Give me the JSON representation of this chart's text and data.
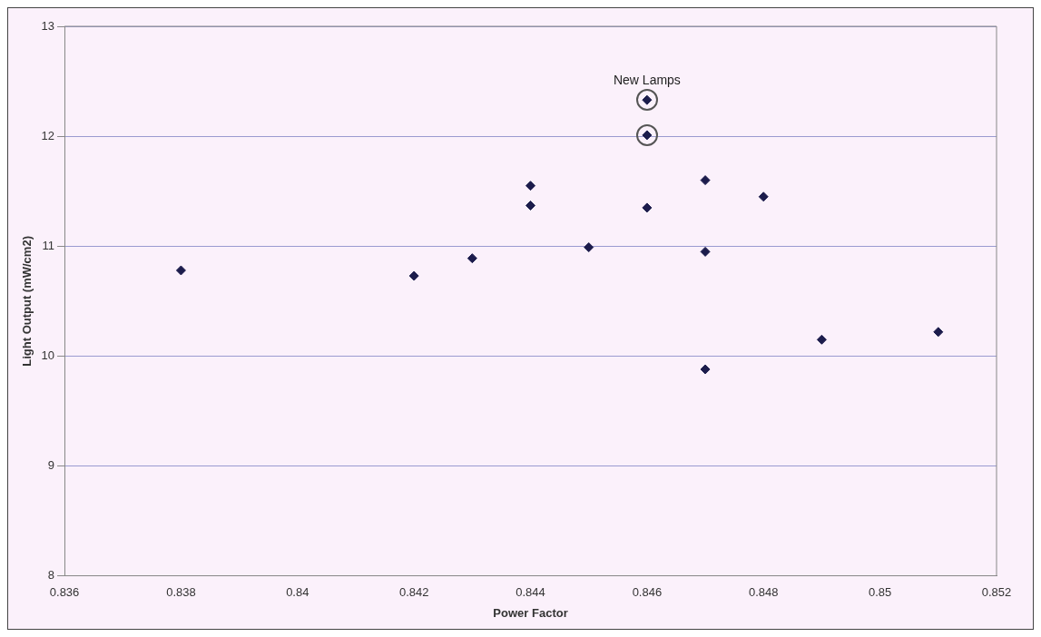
{
  "chart_data": {
    "type": "scatter",
    "xlabel": "Power Factor",
    "ylabel": "Light Output (mW/cm2)",
    "x": [
      0.838,
      0.842,
      0.843,
      0.844,
      0.844,
      0.845,
      0.846,
      0.846,
      0.846,
      0.847,
      0.847,
      0.847,
      0.848,
      0.849,
      0.851
    ],
    "values": [
      10.78,
      10.73,
      10.89,
      11.55,
      11.37,
      10.99,
      11.35,
      12.01,
      12.33,
      11.6,
      10.95,
      9.88,
      11.45,
      10.15,
      10.22
    ],
    "color": "#1c1c4c",
    "marker": "diamond",
    "grid": "y",
    "legend": false,
    "xlim": [
      0.836,
      0.852
    ],
    "xticks": [
      0.836,
      0.838,
      0.84,
      0.842,
      0.844,
      0.846,
      0.848,
      0.85,
      0.852
    ],
    "ylim": [
      8,
      13
    ],
    "yticks": [
      8,
      9,
      10,
      11,
      12,
      13
    ],
    "annotations": [
      {
        "text": "New Lamps",
        "x": 0.846,
        "y": 12.33
      }
    ]
  }
}
